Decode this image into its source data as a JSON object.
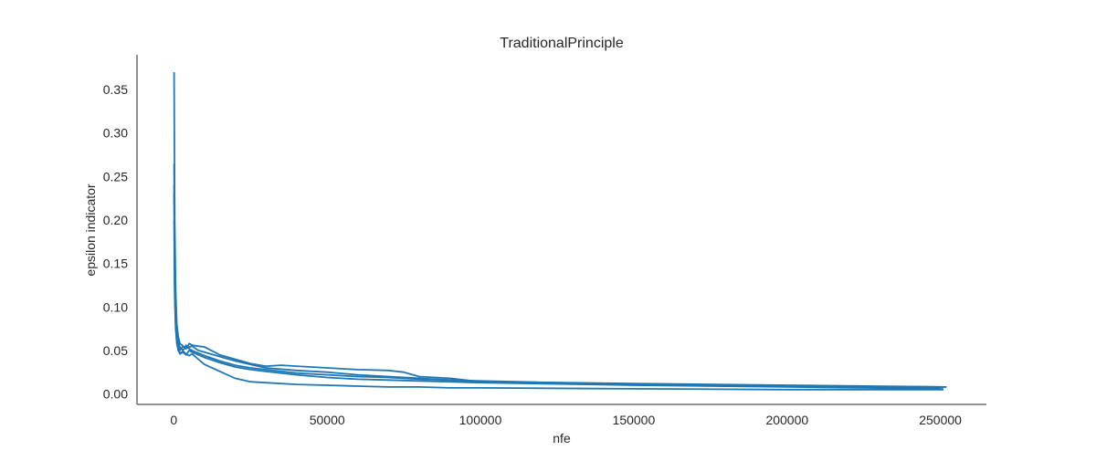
{
  "chart_data": {
    "type": "line",
    "title": "TraditionalPrinciple",
    "xlabel": "nfe",
    "ylabel": "epsilon indicator",
    "xlim": [
      -12000,
      265000
    ],
    "ylim": [
      -0.012,
      0.39
    ],
    "xticks": [
      0,
      50000,
      100000,
      150000,
      200000,
      250000
    ],
    "xtick_labels": [
      "0",
      "50000",
      "100000",
      "150000",
      "200000",
      "250000"
    ],
    "yticks": [
      0.0,
      0.05,
      0.1,
      0.15,
      0.2,
      0.25,
      0.3,
      0.35
    ],
    "ytick_labels": [
      "0.00",
      "0.05",
      "0.10",
      "0.15",
      "0.20",
      "0.25",
      "0.30",
      "0.35"
    ],
    "grid": false,
    "color": "#1f77b4",
    "series": [
      {
        "x": [
          100,
          300,
          600,
          1000,
          1500,
          2000,
          3000,
          4000,
          5000,
          6000,
          8000,
          10000,
          15000,
          20000,
          25000,
          30000,
          40000,
          50000,
          60000,
          70000,
          80000,
          90000,
          100000,
          150000,
          200000,
          252000
        ],
        "y": [
          0.37,
          0.2,
          0.12,
          0.08,
          0.065,
          0.058,
          0.055,
          0.052,
          0.054,
          0.055,
          0.05,
          0.048,
          0.043,
          0.038,
          0.034,
          0.03,
          0.027,
          0.025,
          0.022,
          0.02,
          0.018,
          0.016,
          0.014,
          0.011,
          0.009,
          0.008
        ]
      },
      {
        "x": [
          100,
          300,
          600,
          1000,
          1500,
          2000,
          3000,
          4000,
          5000,
          6000,
          8000,
          10000,
          15000,
          20000,
          25000,
          30000,
          40000,
          50000,
          60000,
          70000,
          80000,
          90000,
          100000,
          150000,
          200000,
          251000
        ],
        "y": [
          0.265,
          0.15,
          0.095,
          0.07,
          0.058,
          0.054,
          0.05,
          0.056,
          0.052,
          0.05,
          0.047,
          0.044,
          0.038,
          0.033,
          0.03,
          0.028,
          0.024,
          0.022,
          0.02,
          0.019,
          0.017,
          0.016,
          0.015,
          0.011,
          0.009,
          0.007
        ]
      },
      {
        "x": [
          100,
          300,
          600,
          1000,
          1500,
          2000,
          3000,
          4000,
          5000,
          6000,
          8000,
          10000,
          15000,
          20000,
          25000,
          30000,
          35000,
          40000,
          50000,
          60000,
          70000,
          75000,
          80000,
          90000,
          100000,
          150000,
          200000,
          252000
        ],
        "y": [
          0.24,
          0.13,
          0.085,
          0.065,
          0.055,
          0.05,
          0.055,
          0.052,
          0.058,
          0.056,
          0.055,
          0.054,
          0.045,
          0.04,
          0.035,
          0.032,
          0.033,
          0.032,
          0.03,
          0.028,
          0.027,
          0.025,
          0.02,
          0.018,
          0.014,
          0.012,
          0.01,
          0.008
        ]
      },
      {
        "x": [
          100,
          300,
          600,
          1000,
          1500,
          2000,
          3000,
          4000,
          5000,
          6000,
          8000,
          10000,
          15000,
          20000,
          25000,
          30000,
          40000,
          50000,
          60000,
          70000,
          80000,
          90000,
          100000,
          150000,
          200000,
          250000
        ],
        "y": [
          0.23,
          0.12,
          0.08,
          0.06,
          0.05,
          0.046,
          0.048,
          0.045,
          0.05,
          0.048,
          0.045,
          0.042,
          0.036,
          0.031,
          0.028,
          0.026,
          0.022,
          0.019,
          0.017,
          0.016,
          0.015,
          0.014,
          0.013,
          0.01,
          0.008,
          0.006
        ]
      },
      {
        "x": [
          100,
          300,
          600,
          1000,
          1500,
          2000,
          3000,
          4000,
          5000,
          6000,
          8000,
          10000,
          15000,
          20000,
          25000,
          30000,
          40000,
          50000,
          60000,
          70000,
          80000,
          90000,
          100000,
          150000,
          200000,
          251000
        ],
        "y": [
          0.2,
          0.11,
          0.075,
          0.058,
          0.05,
          0.047,
          0.049,
          0.046,
          0.044,
          0.046,
          0.04,
          0.034,
          0.026,
          0.018,
          0.014,
          0.013,
          0.011,
          0.01,
          0.009,
          0.008,
          0.008,
          0.007,
          0.007,
          0.006,
          0.005,
          0.005
        ]
      }
    ]
  }
}
